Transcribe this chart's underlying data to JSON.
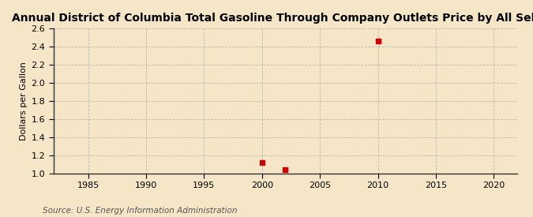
{
  "title": "Annual District of Columbia Total Gasoline Through Company Outlets Price by All Sellers",
  "ylabel": "Dollars per Gallon",
  "source": "Source: U.S. Energy Information Administration",
  "background_color": "#f5e6c8",
  "data_points": [
    {
      "year": 2000,
      "value": 1.12
    },
    {
      "year": 2002,
      "value": 1.04
    },
    {
      "year": 2010,
      "value": 2.46
    }
  ],
  "marker_color": "#cc0000",
  "marker_size": 4,
  "xlim": [
    1982,
    2022
  ],
  "ylim": [
    1.0,
    2.6
  ],
  "xticks": [
    1985,
    1990,
    1995,
    2000,
    2005,
    2010,
    2015,
    2020
  ],
  "yticks": [
    1.0,
    1.2,
    1.4,
    1.6,
    1.8,
    2.0,
    2.2,
    2.4,
    2.6
  ],
  "grid_color": "#999999",
  "title_fontsize": 10,
  "axis_fontsize": 8,
  "tick_fontsize": 8,
  "source_fontsize": 7.5
}
